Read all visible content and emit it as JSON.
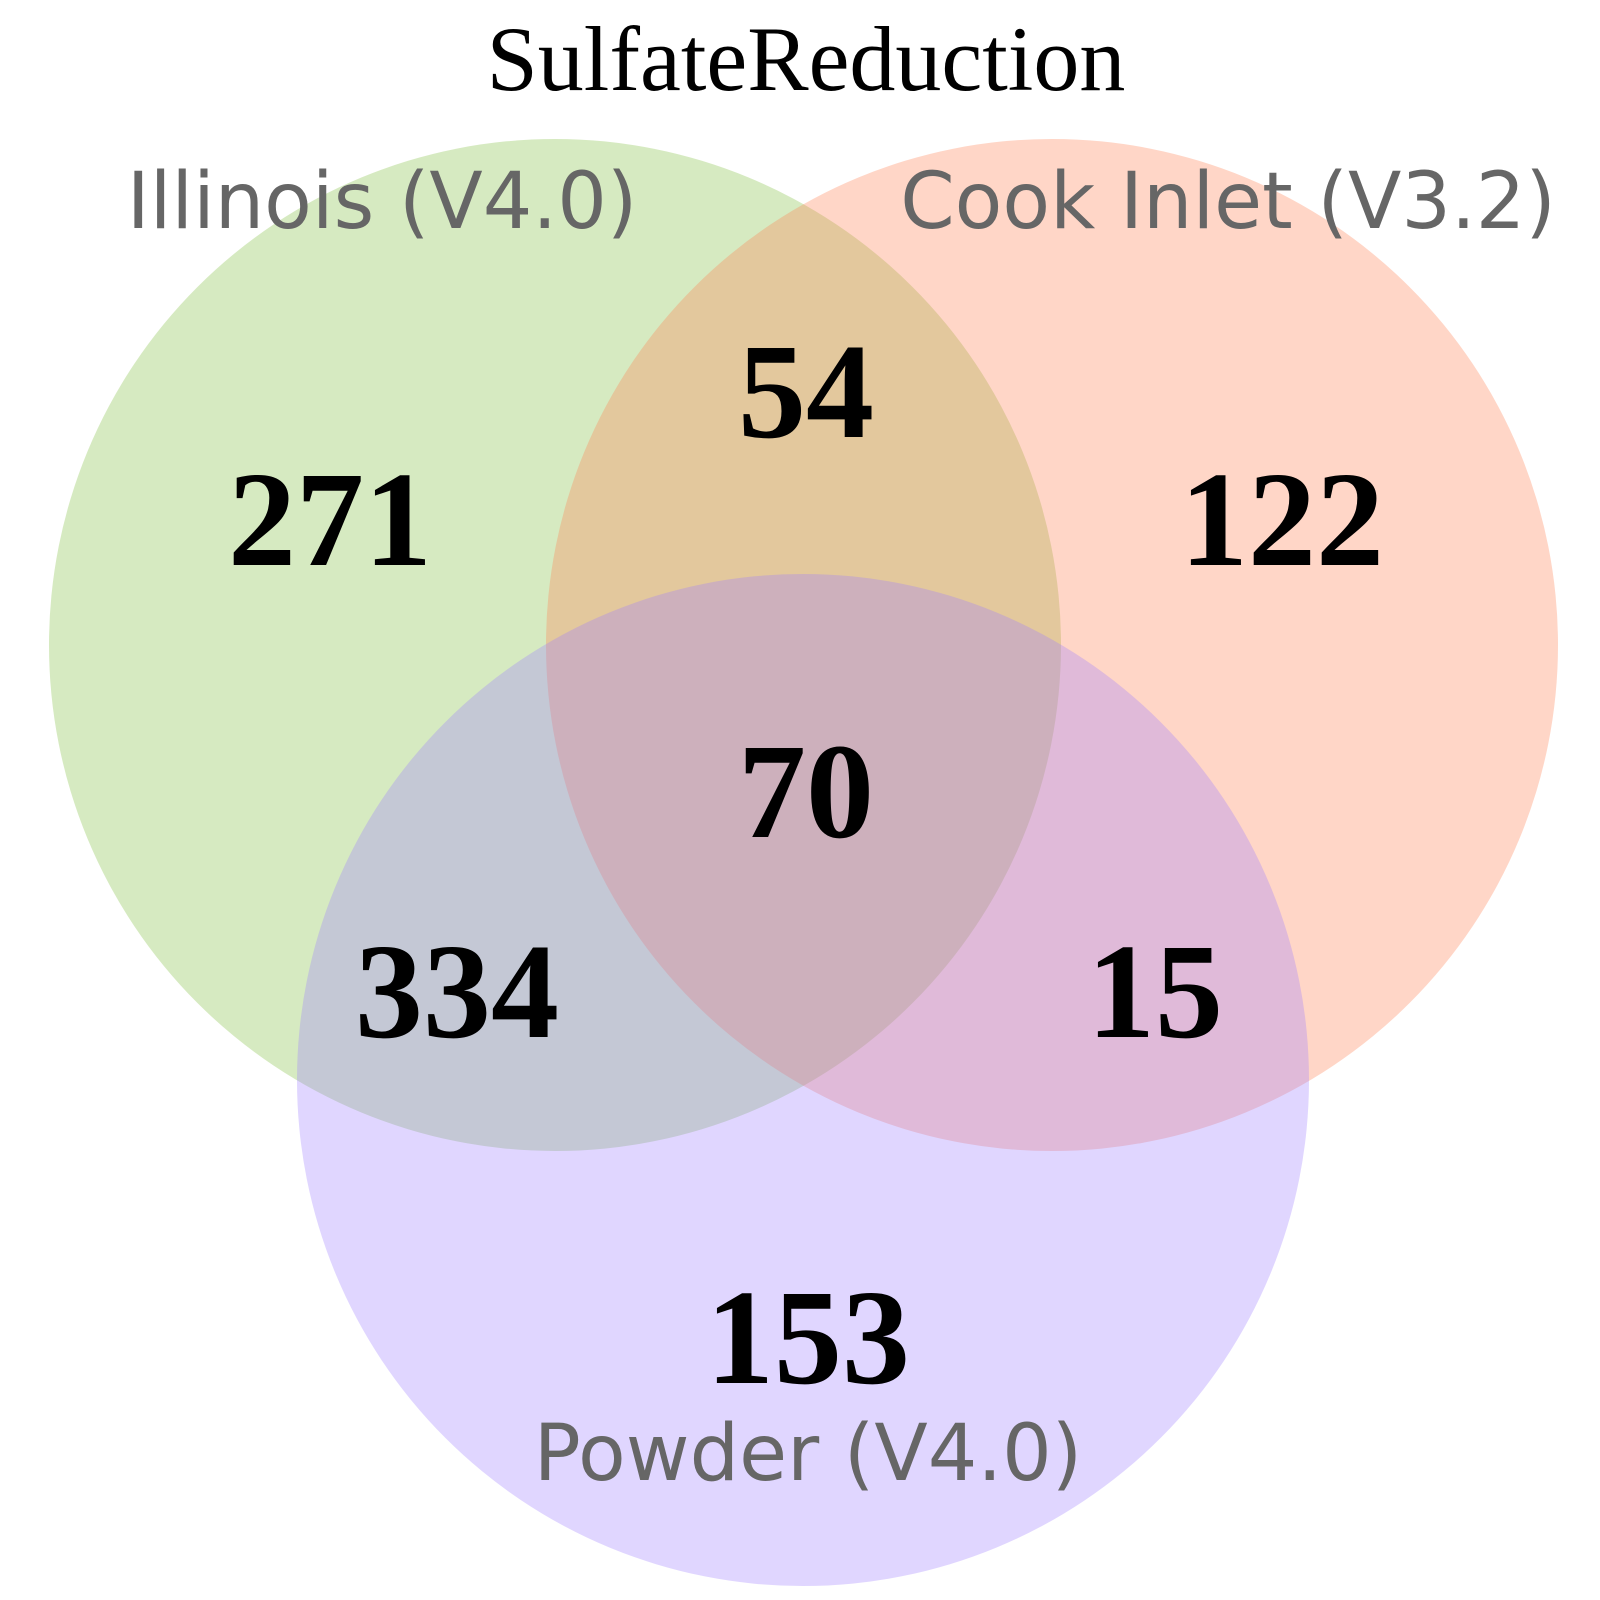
{
  "title": "SulfateReduction",
  "sets": [
    {
      "key": "A",
      "label": "Illinois (V4.0)",
      "color": "#7fbf3f"
    },
    {
      "key": "B",
      "label": "Cook Inlet (V3.2)",
      "color": "#ff7f50"
    },
    {
      "key": "C",
      "label": "Powder (V4.0)",
      "color": "#9f7fff"
    }
  ],
  "regions": {
    "A_only": "271",
    "B_only": "122",
    "C_only": "153",
    "AB": "54",
    "AC": "334",
    "BC": "15",
    "ABC": "70"
  }
}
